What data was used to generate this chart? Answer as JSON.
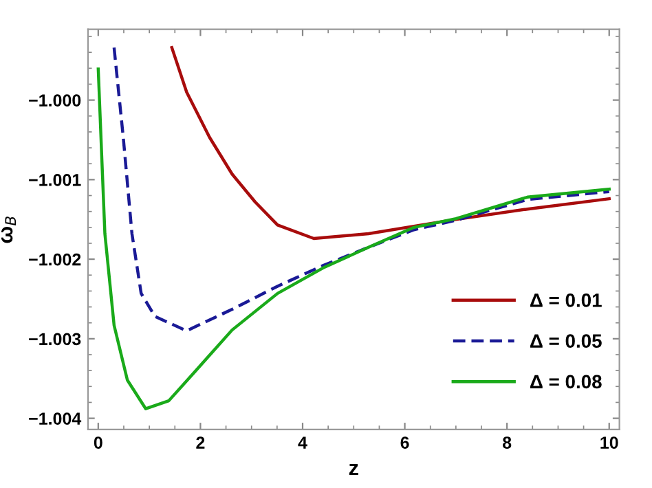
{
  "chart_data": {
    "type": "line",
    "xlabel": "z",
    "ylabel": "ω$_{B}$",
    "xlim": [
      -0.2,
      10.2
    ],
    "ylim": [
      -1.00414,
      -0.99911
    ],
    "xticks": [
      0,
      2,
      4,
      6,
      8,
      10
    ],
    "yticks": [
      {
        "value": -1.0,
        "label": "−1.000"
      },
      {
        "value": -1.001,
        "label": "−1.001"
      },
      {
        "value": -1.002,
        "label": "−1.002"
      },
      {
        "value": -1.003,
        "label": "−1.003"
      },
      {
        "value": -1.004,
        "label": "−1.004"
      }
    ],
    "grid": false,
    "legend": "bottom right",
    "series": [
      {
        "name": "Δ = 0.01",
        "color": "#a80c0c",
        "line_style": "solid",
        "x": [
          1.44,
          1.73,
          2.18,
          2.62,
          3.07,
          3.51,
          4.22,
          5.29,
          6.9,
          8.4,
          10
        ],
        "values": [
          -0.99934,
          -0.9999,
          -1.00047,
          -1.00093,
          -1.00128,
          -1.00157,
          -1.00174,
          -1.00168,
          -1.00151,
          -1.00137,
          -1.00124
        ]
      },
      {
        "name": "Δ = 0.05",
        "color": "#1a1a96",
        "line_style": "dashed",
        "x": [
          0.31,
          0.49,
          0.66,
          0.84,
          1.11,
          1.73,
          2.62,
          3.51,
          4.4,
          5.29,
          6.18,
          7.0,
          8.4,
          10
        ],
        "values": [
          -0.99934,
          -1.00047,
          -1.00168,
          -1.00243,
          -1.00272,
          -1.0029,
          -1.00263,
          -1.00234,
          -1.00208,
          -1.00185,
          -1.00163,
          -1.00151,
          -1.00125,
          -1.00115
        ]
      },
      {
        "name": "Δ = 0.08",
        "color": "#1aaa1a",
        "line_style": "solid",
        "x": [
          0.0,
          0.09,
          0.13,
          0.31,
          0.57,
          0.93,
          1.38,
          1.91,
          2.62,
          3.51,
          4.4,
          5.29,
          6.18,
          7.0,
          8.4,
          10
        ],
        "values": [
          -0.99961,
          -1.00105,
          -1.00168,
          -1.00283,
          -1.00352,
          -1.00388,
          -1.00378,
          -1.0034,
          -1.00289,
          -1.00243,
          -1.00211,
          -1.00185,
          -1.0016,
          -1.00149,
          -1.00122,
          -1.00112
        ]
      }
    ]
  }
}
